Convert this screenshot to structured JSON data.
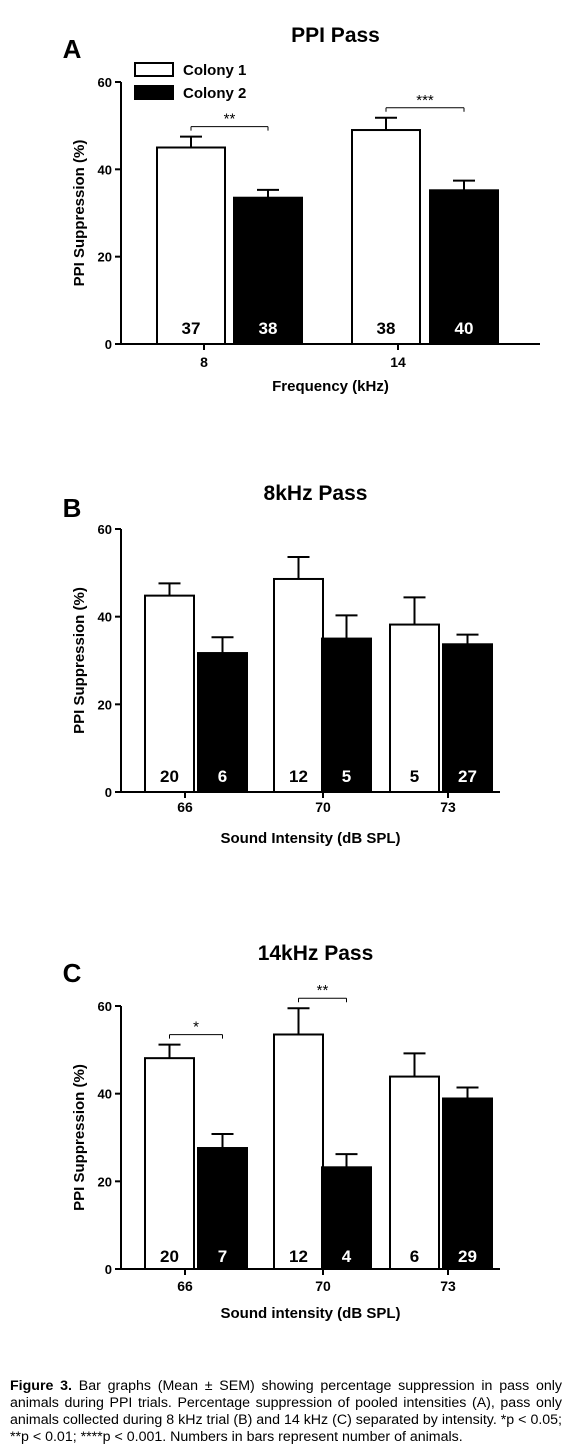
{
  "legend": {
    "colony1": "Colony 1",
    "colony2": "Colony 2"
  },
  "caption": {
    "label": "Figure 3.",
    "text": "Bar graphs (Mean ± SEM) showing percentage suppression in pass only animals during PPI trials. Percentage suppression of pooled intensities (A), pass only animals collected during 8 kHz trial (B) and 14 kHz (C) separated by intensity. *p < 0.05; **p < 0.01; ****p < 0.001. Numbers in bars represent number of animals."
  },
  "colors": {
    "colony1": "#ffffff",
    "colony2": "#000000",
    "axis": "#000000"
  },
  "chart_data": [
    {
      "panel": "A",
      "type": "bar",
      "title": "PPI Pass",
      "xlabel": "Frequency (kHz)",
      "ylabel": "PPI Suppression (%)",
      "ylim": [
        0,
        60
      ],
      "yticks": [
        0,
        20,
        40,
        60
      ],
      "categories": [
        "8",
        "14"
      ],
      "series": [
        {
          "name": "Colony 1",
          "values": [
            45,
            49
          ],
          "sem": [
            2.5,
            2.8
          ],
          "n": [
            "37",
            "38"
          ]
        },
        {
          "name": "Colony 2",
          "values": [
            33.5,
            35.2
          ],
          "sem": [
            1.8,
            2.2
          ],
          "n": [
            "38",
            "40"
          ]
        }
      ],
      "significance": [
        "**",
        "***"
      ]
    },
    {
      "panel": "B",
      "type": "bar",
      "title": "8kHz Pass",
      "xlabel": "Sound  Intensity (dB SPL)",
      "ylabel": "PPI Suppression (%)",
      "ylim": [
        0,
        60
      ],
      "yticks": [
        0,
        20,
        40,
        60
      ],
      "categories": [
        "66",
        "70",
        "73"
      ],
      "series": [
        {
          "name": "Colony 1",
          "values": [
            44.8,
            48.6,
            38.2
          ],
          "sem": [
            2.8,
            5,
            6.2
          ],
          "n": [
            "20",
            "12",
            "5"
          ]
        },
        {
          "name": "Colony 2",
          "values": [
            31.7,
            35,
            33.7
          ],
          "sem": [
            3.6,
            5.3,
            2.2
          ],
          "n": [
            "6",
            "5",
            "27"
          ]
        }
      ],
      "significance": [
        "",
        "",
        ""
      ]
    },
    {
      "panel": "C",
      "type": "bar",
      "title": "14kHz Pass",
      "xlabel": "Sound intensity (dB SPL)",
      "ylabel": "PPI Suppression (%)",
      "ylim": [
        0,
        60
      ],
      "yticks": [
        0,
        20,
        40,
        60
      ],
      "categories": [
        "66",
        "70",
        "73"
      ],
      "series": [
        {
          "name": "Colony 1",
          "values": [
            48.1,
            53.5,
            43.9
          ],
          "sem": [
            3.1,
            6,
            5.3
          ],
          "n": [
            "20",
            "12",
            "6"
          ]
        },
        {
          "name": "Colony 2",
          "values": [
            27.6,
            23.2,
            38.9
          ],
          "sem": [
            3.2,
            3,
            2.5
          ],
          "n": [
            "7",
            "4",
            "29"
          ]
        }
      ],
      "significance": [
        "*",
        "**",
        ""
      ]
    }
  ]
}
